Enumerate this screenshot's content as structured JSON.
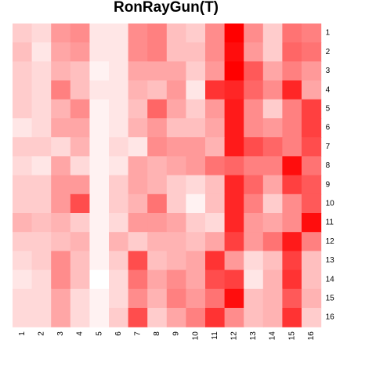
{
  "chart_data": {
    "type": "heatmap",
    "title": "RonRayGun(T)",
    "x_labels": [
      "1",
      "2",
      "3",
      "4",
      "5",
      "6",
      "7",
      "8",
      "9",
      "10",
      "11",
      "12",
      "13",
      "14",
      "15",
      "16"
    ],
    "y_labels": [
      "1",
      "2",
      "3",
      "4",
      "5",
      "6",
      "7",
      "8",
      "9",
      "10",
      "11",
      "12",
      "13",
      "14",
      "15",
      "16"
    ],
    "y_label_side": "right",
    "color_scale": {
      "low": "#ffffff",
      "high": "#ff0000"
    },
    "values": [
      [
        0.2,
        0.15,
        0.4,
        0.45,
        0.1,
        0.1,
        0.45,
        0.5,
        0.25,
        0.2,
        0.45,
        1.0,
        0.45,
        0.2,
        0.55,
        0.5
      ],
      [
        0.25,
        0.1,
        0.35,
        0.4,
        0.1,
        0.1,
        0.45,
        0.5,
        0.25,
        0.25,
        0.45,
        0.95,
        0.4,
        0.2,
        0.6,
        0.55
      ],
      [
        0.2,
        0.15,
        0.3,
        0.25,
        0.05,
        0.1,
        0.35,
        0.35,
        0.35,
        0.2,
        0.4,
        1.0,
        0.65,
        0.35,
        0.5,
        0.4
      ],
      [
        0.2,
        0.15,
        0.5,
        0.25,
        0.1,
        0.1,
        0.3,
        0.25,
        0.4,
        0.1,
        0.8,
        0.85,
        0.6,
        0.45,
        0.85,
        0.35
      ],
      [
        0.2,
        0.15,
        0.3,
        0.45,
        0.05,
        0.1,
        0.25,
        0.6,
        0.35,
        0.2,
        0.4,
        0.9,
        0.45,
        0.2,
        0.5,
        0.75
      ],
      [
        0.1,
        0.15,
        0.35,
        0.35,
        0.05,
        0.1,
        0.3,
        0.4,
        0.25,
        0.25,
        0.35,
        0.9,
        0.45,
        0.4,
        0.5,
        0.75
      ],
      [
        0.2,
        0.2,
        0.15,
        0.3,
        0.05,
        0.15,
        0.1,
        0.45,
        0.4,
        0.4,
        0.3,
        0.9,
        0.7,
        0.6,
        0.5,
        0.7
      ],
      [
        0.15,
        0.1,
        0.35,
        0.15,
        0.05,
        0.1,
        0.35,
        0.3,
        0.35,
        0.4,
        0.55,
        0.6,
        0.5,
        0.5,
        0.95,
        0.55
      ],
      [
        0.2,
        0.2,
        0.4,
        0.4,
        0.05,
        0.2,
        0.35,
        0.3,
        0.2,
        0.15,
        0.25,
        0.85,
        0.6,
        0.35,
        0.75,
        0.65
      ],
      [
        0.2,
        0.2,
        0.4,
        0.7,
        0.05,
        0.2,
        0.3,
        0.55,
        0.2,
        0.05,
        0.25,
        0.85,
        0.5,
        0.2,
        0.45,
        0.65
      ],
      [
        0.3,
        0.25,
        0.3,
        0.2,
        0.05,
        0.15,
        0.4,
        0.4,
        0.35,
        0.2,
        0.15,
        0.85,
        0.4,
        0.35,
        0.45,
        0.95
      ],
      [
        0.2,
        0.2,
        0.25,
        0.3,
        0.05,
        0.3,
        0.2,
        0.3,
        0.3,
        0.25,
        0.35,
        0.75,
        0.4,
        0.55,
        0.9,
        0.5
      ],
      [
        0.15,
        0.2,
        0.45,
        0.25,
        0.05,
        0.2,
        0.7,
        0.25,
        0.3,
        0.35,
        0.8,
        0.4,
        0.15,
        0.25,
        0.75,
        0.25
      ],
      [
        0.1,
        0.15,
        0.45,
        0.25,
        0.0,
        0.15,
        0.55,
        0.35,
        0.45,
        0.35,
        0.7,
        0.75,
        0.1,
        0.3,
        0.8,
        0.25
      ],
      [
        0.15,
        0.15,
        0.35,
        0.15,
        0.05,
        0.15,
        0.45,
        0.3,
        0.5,
        0.4,
        0.55,
        0.95,
        0.25,
        0.3,
        0.65,
        0.3
      ],
      [
        0.15,
        0.15,
        0.35,
        0.15,
        0.05,
        0.2,
        0.7,
        0.2,
        0.35,
        0.5,
        0.8,
        0.45,
        0.25,
        0.3,
        0.8,
        0.2
      ]
    ]
  }
}
